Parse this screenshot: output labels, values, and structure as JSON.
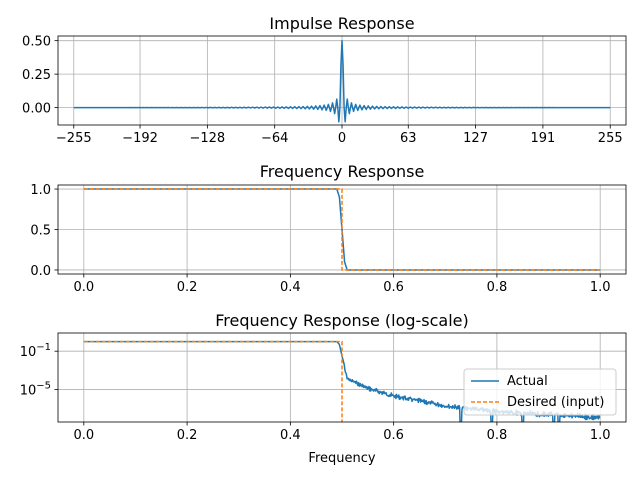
{
  "chart_data": [
    {
      "type": "line",
      "title": "Impulse Response",
      "xlabel": "",
      "ylabel": "",
      "xlim": [
        -270,
        270
      ],
      "ylim": [
        -0.13,
        0.535
      ],
      "xticks": [
        -255,
        -192,
        -128,
        -64,
        0,
        63,
        127,
        191,
        255
      ],
      "xtick_labels": [
        "−255",
        "−192",
        "−128",
        "−64",
        "0",
        "63",
        "127",
        "191",
        "255"
      ],
      "yticks": [
        0.0,
        0.25,
        0.5
      ],
      "ytick_labels": [
        "0.00",
        "0.25",
        "0.50"
      ],
      "grid": true,
      "series": [
        {
          "color": "#1f77b4",
          "description": "windowed sinc, peak 0.5 at n=0, taps from -255 to 255",
          "x": [
            -255,
            -30,
            -14,
            -10,
            -6,
            -2,
            0,
            2,
            6,
            10,
            14,
            30,
            255
          ],
          "y": [
            0.0,
            0.0,
            0.02,
            0.03,
            0.05,
            0.31,
            0.5,
            0.31,
            0.05,
            0.03,
            0.02,
            0.0,
            0.0
          ]
        }
      ]
    },
    {
      "type": "line",
      "title": "Frequency Response",
      "xlabel": "",
      "ylabel": "",
      "xlim": [
        -0.05,
        1.05
      ],
      "ylim": [
        -0.05,
        1.05
      ],
      "xticks": [
        0.0,
        0.2,
        0.4,
        0.6,
        0.8,
        1.0
      ],
      "xtick_labels": [
        "0.0",
        "0.2",
        "0.4",
        "0.6",
        "0.8",
        "1.0"
      ],
      "yticks": [
        0.0,
        0.5,
        1.0
      ],
      "ytick_labels": [
        "0.0",
        "0.5",
        "1.0"
      ],
      "grid": true,
      "series": [
        {
          "color": "#1f77b4",
          "style": "solid",
          "x": [
            0.0,
            0.49,
            0.495,
            0.5,
            0.505,
            0.51,
            1.0
          ],
          "y": [
            1.0,
            1.0,
            0.9,
            0.5,
            0.1,
            0.0,
            0.0
          ]
        },
        {
          "color": "#ff7f0e",
          "style": "dashed",
          "x": [
            0.0,
            0.5,
            0.5,
            1.0
          ],
          "y": [
            1.0,
            1.0,
            0.0,
            0.0
          ]
        }
      ]
    },
    {
      "type": "line",
      "title": "Frequency Response (log-scale)",
      "xlabel": "Frequency",
      "ylabel": "",
      "xlim": [
        -0.05,
        1.05
      ],
      "yscale": "log",
      "ylim_log10": [
        -8.4,
        0.9
      ],
      "xticks": [
        0.0,
        0.2,
        0.4,
        0.6,
        0.8,
        1.0
      ],
      "xtick_labels": [
        "0.0",
        "0.2",
        "0.4",
        "0.6",
        "0.8",
        "1.0"
      ],
      "yticks_log10": [
        -1,
        -5
      ],
      "ytick_base": "10",
      "ytick_exponents": [
        "−1",
        "−5"
      ],
      "grid": true,
      "legend": {
        "position": "lower right",
        "entries": [
          "Actual",
          "Desired (input)"
        ]
      },
      "series": [
        {
          "name": "Actual",
          "color": "#1f77b4",
          "style": "solid",
          "x_log10y": [
            [
              0.0,
              0.0
            ],
            [
              0.49,
              0.0
            ],
            [
              0.495,
              -0.3
            ],
            [
              0.5,
              -1.5
            ],
            [
              0.51,
              -3.6
            ],
            [
              0.55,
              -4.6
            ],
            [
              0.6,
              -5.4
            ],
            [
              0.65,
              -5.9
            ],
            [
              0.7,
              -6.4
            ],
            [
              0.75,
              -6.7
            ],
            [
              0.8,
              -6.95
            ],
            [
              0.85,
              -7.15
            ],
            [
              0.9,
              -7.3
            ],
            [
              0.95,
              -7.4
            ],
            [
              1.0,
              -7.6
            ]
          ],
          "dips": [
            0.73,
            0.79,
            0.85,
            0.91,
            0.92
          ]
        },
        {
          "name": "Desired (input)",
          "color": "#ff7f0e",
          "style": "dashed",
          "x_log10y": [
            [
              0.0,
              0.0
            ],
            [
              0.5,
              0.0
            ],
            [
              0.5,
              -8.4
            ]
          ]
        }
      ]
    }
  ]
}
